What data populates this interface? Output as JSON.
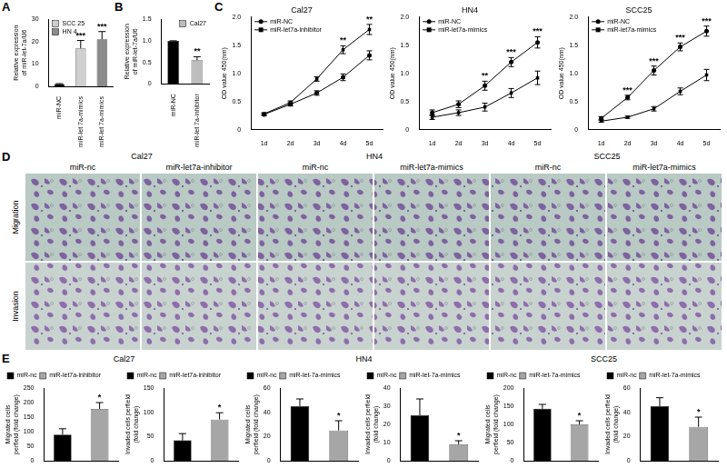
{
  "panel_labels": [
    "A",
    "B",
    "C",
    "D",
    "E"
  ],
  "chart_data": [
    {
      "type": "bar",
      "y_label": "Relative expression of miR-let-7a/U6",
      "categories": [
        "miR-NC",
        "miR-let 7a-mimics",
        "miR-let 7a-mimics"
      ],
      "series": [
        {
          "color": "#000000",
          "values": [
            1,
            null,
            null
          ],
          "errors": [
            0.2,
            null,
            null
          ]
        },
        {
          "name": "SCC 25",
          "color": "#cfcfcf",
          "values": [
            null,
            17,
            null
          ],
          "errors": [
            null,
            3.5,
            null
          ]
        },
        {
          "name": "HN 4",
          "color": "#8c8c8c",
          "values": [
            null,
            null,
            21
          ],
          "errors": [
            null,
            null,
            3.5
          ]
        }
      ],
      "significance": [
        null,
        "***",
        "***"
      ],
      "ylim": [
        0,
        30
      ],
      "yticks": [
        0,
        10,
        20,
        30
      ],
      "grid": false,
      "legend": "upper left"
    },
    {
      "type": "bar",
      "y_label": "Relative expression of miR-let-7a/U6",
      "categories": [
        "miR-NC",
        "miR-let 7a-inhibitor"
      ],
      "series": [
        {
          "color": "#000000",
          "values": [
            1,
            null
          ],
          "errors": [
            0,
            null
          ]
        },
        {
          "name": "Cal27",
          "color": "#bdbdbd",
          "values": [
            null,
            0.55
          ],
          "errors": [
            null,
            0.08
          ]
        }
      ],
      "significance": [
        null,
        "**"
      ],
      "ylim": [
        0,
        1.5
      ],
      "yticks": [
        0,
        0.5,
        {
          "value": 1,
          "label": "1.0"
        },
        1.5
      ],
      "grid": false,
      "legend": "upper right"
    },
    {
      "type": "line",
      "title": "Cal27",
      "y_label": "OD value 450(nm)",
      "categories": [
        "1d",
        "2d",
        "3d",
        "4d",
        "5d"
      ],
      "series": [
        {
          "name": "miR-NC",
          "color": "#000000",
          "marker": "circle",
          "values": [
            0.27,
            0.45,
            0.65,
            0.93,
            1.32
          ],
          "errors": [
            0.02,
            0.03,
            0.04,
            0.06,
            0.08
          ]
        },
        {
          "name": "miR-let7a-inhibitor",
          "color": "#000000",
          "marker": "square",
          "values": [
            0.28,
            0.48,
            0.9,
            1.42,
            1.78
          ],
          "errors": [
            0.02,
            0.03,
            0.04,
            0.07,
            0.09
          ]
        }
      ],
      "significance": [
        null,
        null,
        null,
        "**",
        "**"
      ],
      "ylim": [
        0,
        2
      ],
      "yticks": [
        0,
        0.5,
        {
          "value": 1,
          "label": "1.0"
        },
        1.5,
        {
          "value": 2,
          "label": "2.0"
        }
      ],
      "grid": false,
      "legend": "upper left"
    },
    {
      "type": "line",
      "title": "HN4",
      "y_label": "OD value 450(nm)",
      "categories": [
        "1d",
        "2d",
        "3d",
        "4d",
        "5d"
      ],
      "series": [
        {
          "name": "miR-NC",
          "color": "#000000",
          "marker": "circle",
          "values": [
            0.3,
            0.45,
            0.78,
            1.2,
            1.55
          ],
          "errors": [
            0.05,
            0.06,
            0.08,
            0.08,
            0.1
          ]
        },
        {
          "name": "miR-let7a-mimics",
          "color": "#000000",
          "marker": "square",
          "values": [
            0.22,
            0.3,
            0.4,
            0.65,
            0.92
          ],
          "errors": [
            0.04,
            0.05,
            0.07,
            0.08,
            0.12
          ]
        }
      ],
      "significance": [
        null,
        null,
        "**",
        "***",
        "***"
      ],
      "ylim": [
        0,
        2
      ],
      "yticks": [
        0,
        0.5,
        {
          "value": 1,
          "label": "1.0"
        },
        1.5,
        {
          "value": 2,
          "label": "2.0"
        }
      ],
      "grid": false,
      "legend": "upper left"
    },
    {
      "type": "line",
      "title": "SCC25",
      "y_label": "OD value 450(nm)",
      "categories": [
        "1d",
        "2d",
        "3d",
        "4d",
        "5d"
      ],
      "series": [
        {
          "name": "miR-NC",
          "color": "#000000",
          "marker": "circle",
          "values": [
            0.2,
            0.57,
            1.05,
            1.47,
            1.75
          ],
          "errors": [
            0.03,
            0.04,
            0.08,
            0.07,
            0.09
          ]
        },
        {
          "name": "miR-let7a-mimics",
          "color": "#000000",
          "marker": "square",
          "values": [
            0.15,
            0.22,
            0.37,
            0.68,
            0.97
          ],
          "errors": [
            0.02,
            0.02,
            0.04,
            0.06,
            0.1
          ]
        }
      ],
      "significance": [
        null,
        "***",
        "***",
        "***",
        "***"
      ],
      "ylim": [
        0,
        2
      ],
      "yticks": [
        0,
        0.5,
        {
          "value": 1,
          "label": "1.0"
        },
        1.5,
        {
          "value": 2,
          "label": "2.0"
        }
      ],
      "grid": false,
      "legend": "upper left"
    },
    {
      "type": "bar",
      "title": "Cal27",
      "y_label": "Migrated cells perfield (fold change)",
      "categories": [
        null,
        null
      ],
      "series": [
        {
          "name": "miR-nc",
          "color": "#000000",
          "values": [
            90,
            null
          ],
          "errors": [
            20,
            null
          ]
        },
        {
          "name": "miR-let7a-inhibitor",
          "color": "#a6a6a6",
          "values": [
            null,
            178
          ],
          "errors": [
            null,
            22
          ]
        }
      ],
      "significance": [
        null,
        "*"
      ],
      "ylim": [
        0,
        250
      ],
      "yticks": [
        0,
        50,
        100,
        150,
        200,
        250
      ],
      "grid": false,
      "legend": "upper left",
      "tick_labels": "y"
    },
    {
      "type": "bar",
      "y_label": "Invaded cells perfield (fold change)",
      "categories": [
        null,
        null
      ],
      "series": [
        {
          "name": "miR-nc",
          "color": "#000000",
          "values": [
            42,
            null
          ],
          "errors": [
            14,
            null
          ]
        },
        {
          "name": "miR-let7a-inhibitor",
          "color": "#a6a6a6",
          "values": [
            null,
            85
          ],
          "errors": [
            null,
            14
          ]
        }
      ],
      "significance": [
        null,
        "*"
      ],
      "ylim": [
        0,
        150
      ],
      "yticks": [
        0,
        50,
        100,
        150
      ],
      "grid": false,
      "legend": "upper left",
      "tick_labels": "y"
    },
    {
      "type": "bar",
      "title": "HN4",
      "y_label": "Migrated cells perfield (fold change)",
      "categories": [
        null,
        null
      ],
      "series": [
        {
          "name": "miR-nc",
          "color": "#000000",
          "values": [
            45,
            null
          ],
          "errors": [
            6,
            null
          ]
        },
        {
          "name": "miR-let-7a-mimics",
          "color": "#a6a6a6",
          "values": [
            null,
            25
          ],
          "errors": [
            null,
            8
          ]
        }
      ],
      "significance": [
        null,
        "*"
      ],
      "ylim": [
        0,
        60
      ],
      "yticks": [
        0,
        20,
        40,
        60
      ],
      "grid": false,
      "legend": "upper left",
      "tick_labels": "y"
    },
    {
      "type": "bar",
      "y_label": "Invaded cells perfield (fold change)",
      "categories": [
        null,
        null
      ],
      "series": [
        {
          "name": "miR-nc",
          "color": "#000000",
          "values": [
            25,
            null
          ],
          "errors": [
            9,
            null
          ]
        },
        {
          "name": "miR-let-7a-mimics",
          "color": "#a6a6a6",
          "values": [
            null,
            9
          ],
          "errors": [
            null,
            2
          ]
        }
      ],
      "significance": [
        null,
        "*"
      ],
      "ylim": [
        0,
        40
      ],
      "yticks": [
        0,
        10,
        20,
        30,
        40
      ],
      "grid": false,
      "legend": "upper left",
      "tick_labels": "y"
    },
    {
      "type": "bar",
      "title": "SCC25",
      "y_label": "Migrated cells perfield (fold change)",
      "categories": [
        null,
        null
      ],
      "series": [
        {
          "name": "miR-nc",
          "color": "#000000",
          "values": [
            143,
            null
          ],
          "errors": [
            12,
            null
          ]
        },
        {
          "name": "miR-let-7a-mimics",
          "color": "#a6a6a6",
          "values": [
            null,
            100
          ],
          "errors": [
            null,
            10
          ]
        }
      ],
      "significance": [
        null,
        "*"
      ],
      "ylim": [
        0,
        200
      ],
      "yticks": [
        0,
        50,
        100,
        150,
        200
      ],
      "grid": false,
      "legend": "upper left",
      "tick_labels": "y"
    },
    {
      "type": "bar",
      "y_label": "Invaded cells perfield (fold change)",
      "categories": [
        null,
        null
      ],
      "series": [
        {
          "name": "miR-nc",
          "color": "#000000",
          "values": [
            45,
            null
          ],
          "errors": [
            7,
            null
          ]
        },
        {
          "name": "miR-let-7a-mimics",
          "color": "#a6a6a6",
          "values": [
            null,
            28
          ],
          "errors": [
            null,
            8
          ]
        }
      ],
      "significance": [
        null,
        "*"
      ],
      "ylim": [
        0,
        60
      ],
      "yticks": [
        0,
        20,
        40,
        60
      ],
      "grid": false,
      "legend": "upper left",
      "tick_labels": "y"
    }
  ],
  "microscopy": {
    "groups": [
      {
        "title": "Cal27",
        "columns": [
          "miR-nc",
          "miR-let7a-inhibitor"
        ]
      },
      {
        "title": "HN4",
        "columns": [
          "miR-nc",
          "miR-let7a-mimics"
        ]
      },
      {
        "title": "SCC25",
        "columns": [
          "miR-nc",
          "miR-let7a-mimics"
        ]
      }
    ],
    "rows": [
      "Migration",
      "Invasion"
    ]
  }
}
